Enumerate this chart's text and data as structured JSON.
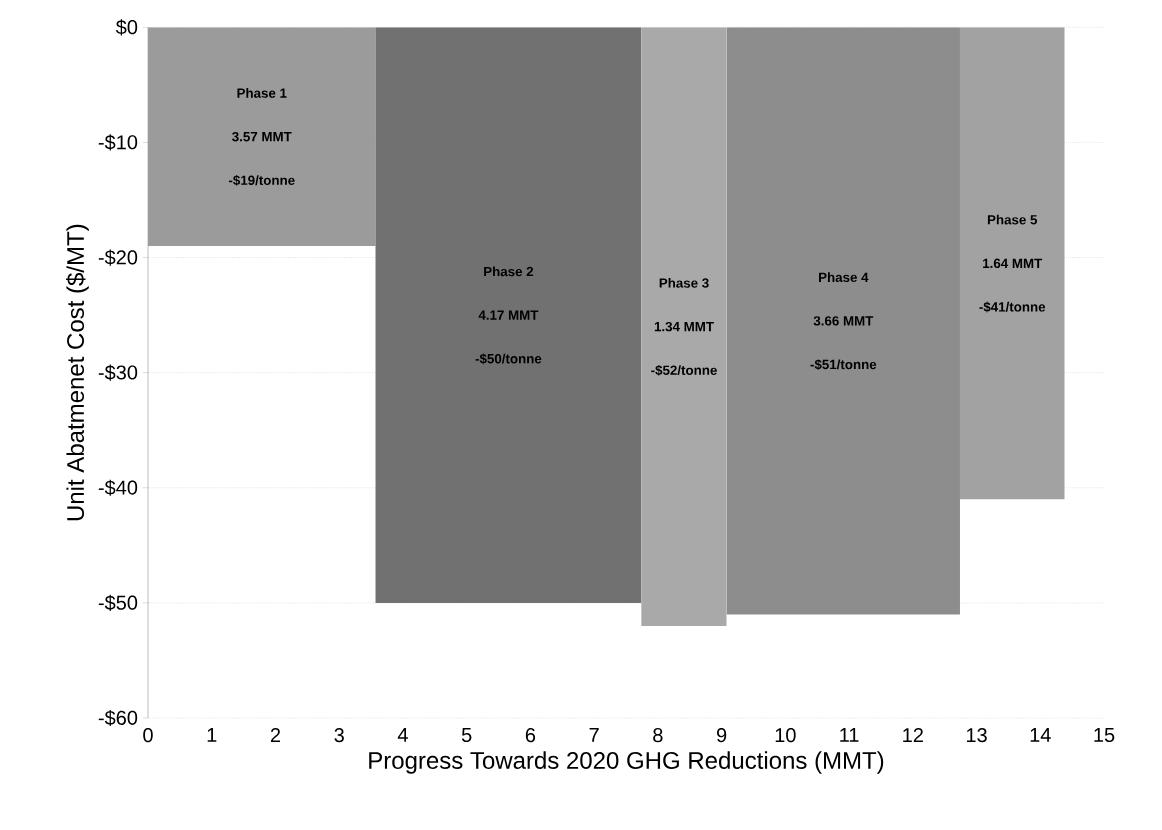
{
  "chart_data": {
    "type": "area",
    "xlabel": "Progress Towards 2020 GHG Reductions (MMT)",
    "ylabel": "Unit Abatmenet Cost ($/MT)",
    "xlim": [
      0,
      15
    ],
    "xticks": [
      0,
      1,
      2,
      3,
      4,
      5,
      6,
      7,
      8,
      9,
      10,
      11,
      12,
      13,
      14,
      15
    ],
    "ylim": [
      -60,
      0
    ],
    "yticks": [
      {
        "value": 0,
        "label": "$0"
      },
      {
        "value": -10,
        "label": "-$10"
      },
      {
        "value": -20,
        "label": "-$20"
      },
      {
        "value": -30,
        "label": "-$30"
      },
      {
        "value": -40,
        "label": "-$40"
      },
      {
        "value": -50,
        "label": "-$50"
      },
      {
        "value": -60,
        "label": "-$60"
      }
    ],
    "grid": "y",
    "series": [
      {
        "color": "#9b9b9b",
        "x": [
          0,
          3.57
        ],
        "values": [
          -19,
          -19
        ]
      },
      {
        "color": "#717171",
        "x": [
          3.57,
          7.74
        ],
        "values": [
          -50,
          -50
        ]
      },
      {
        "color": "#a9a9a9",
        "x": [
          7.74,
          9.08
        ],
        "values": [
          -52,
          -52
        ]
      },
      {
        "color": "#8d8d8d",
        "x": [
          9.08,
          12.74
        ],
        "values": [
          -51,
          -51
        ]
      },
      {
        "color": "#a2a2a2",
        "x": [
          12.74,
          14.38
        ],
        "values": [
          -41,
          -41
        ]
      }
    ],
    "annotations": [
      "Phase 1",
      "3.57 MMT",
      "-$19/tonne",
      "Phase 2",
      "4.17 MMT",
      "-$50/tonne",
      "Phase 3",
      "1.34 MMT",
      "-$52/tonne",
      "Phase 4",
      "3.66 MMT",
      "-$51/tonne",
      "Phase 5",
      "1.64 MMT",
      "-$41/tonne"
    ]
  }
}
